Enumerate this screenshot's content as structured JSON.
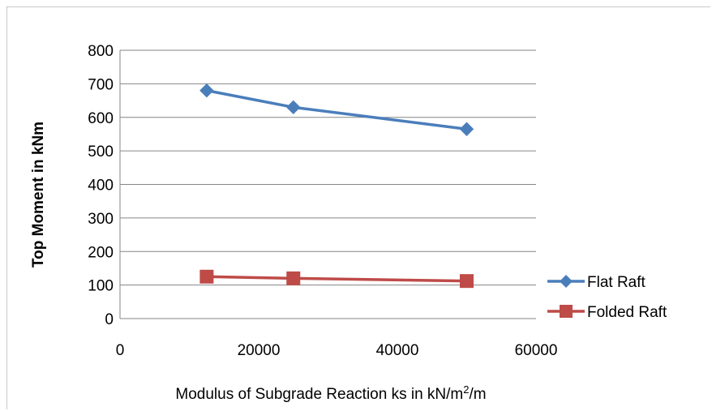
{
  "chart_data": {
    "type": "line",
    "xlabel": "Modulus of Subgrade Reaction ks in kN/m²/m",
    "ylabel": "Top Moment in kNm",
    "xlim": [
      0,
      60000
    ],
    "ylim": [
      0,
      800
    ],
    "xticks": [
      0,
      20000,
      40000,
      60000
    ],
    "yticks": [
      0,
      100,
      200,
      300,
      400,
      500,
      600,
      700,
      800
    ],
    "grid": "horizontal",
    "legend_position": "right",
    "x": [
      12500,
      25000,
      50000
    ],
    "series": [
      {
        "name": "Flat Raft",
        "values": [
          680,
          630,
          565
        ],
        "color": "#4A7EBB",
        "marker": "diamond"
      },
      {
        "name": "Folded Raft",
        "values": [
          125,
          120,
          112
        ],
        "color": "#BE4B48",
        "marker": "square"
      }
    ]
  }
}
